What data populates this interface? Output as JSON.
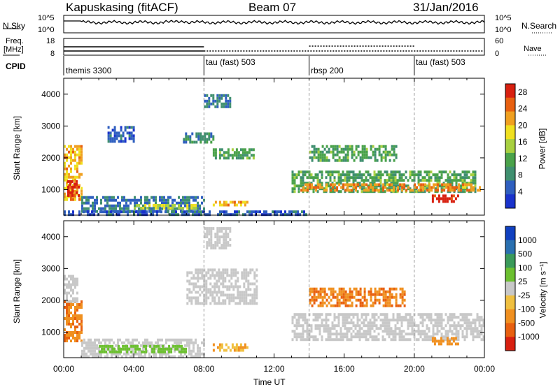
{
  "header": {
    "station": "Kapuskasing (fitACF)",
    "beam": "Beam 07",
    "date": "31/Jan/2016"
  },
  "noise_panel": {
    "left_label": "N.Sky",
    "right_label": "N.Search",
    "left_ticks": [
      "10^5",
      "10^0"
    ],
    "right_ticks": [
      "10^5",
      "10^0"
    ]
  },
  "freq_panel": {
    "left_label_1": "Freq.",
    "left_label_2": "[MHz]",
    "left_ticks": [
      "18",
      "8"
    ],
    "right_label": "Nave",
    "right_ticks": [
      "60",
      "0"
    ],
    "cpid_label": "CPID"
  },
  "cpid_segments": [
    {
      "label": "themis 3300",
      "start_hour": 0,
      "end_hour": 8
    },
    {
      "label": "tau (fast) 503",
      "start_hour": 8,
      "end_hour": 14
    },
    {
      "label": "rbsp 200",
      "start_hour": 14,
      "end_hour": 20
    },
    {
      "label": "tau (fast) 503",
      "start_hour": 20,
      "end_hour": 24
    }
  ],
  "colors": {
    "power_scale": [
      "#1a33cc",
      "#2f5fbf",
      "#3f8f6f",
      "#4aa24a",
      "#a8d040",
      "#f0e020",
      "#f0a020",
      "#e86010",
      "#d82010"
    ],
    "velocity_scale": [
      "#1040c0",
      "#2a70b0",
      "#3a9a5a",
      "#6cc030",
      "#c8c8c8",
      "#f0c040",
      "#f09020",
      "#e86010",
      "#d82010"
    ]
  },
  "chart_data": [
    {
      "type": "heatmap",
      "title": "",
      "ylabel": "Slant Range [km]",
      "xlabel": "",
      "ylim": [
        200,
        4500
      ],
      "xlim": [
        0,
        24
      ],
      "x_ticks": [],
      "y_ticks": [
        "1000",
        "2000",
        "3000",
        "4000"
      ],
      "colorbar_label": "Power [dB]",
      "colorbar_ticks": [
        "4",
        "8",
        "12",
        "16",
        "20",
        "24",
        "28"
      ],
      "colorbar_range": [
        0,
        30
      ],
      "regions": [
        {
          "t0": 0.0,
          "t1": 1.0,
          "r0": 700,
          "r1": 2400,
          "level": 20
        },
        {
          "t0": 0.2,
          "t1": 0.9,
          "r0": 800,
          "r1": 1300,
          "level": 28
        },
        {
          "t0": 1.0,
          "t1": 8.0,
          "r0": 300,
          "r1": 800,
          "level": 6
        },
        {
          "t0": 4.0,
          "t1": 7.5,
          "r0": 400,
          "r1": 550,
          "level": 16
        },
        {
          "t0": 2.5,
          "t1": 4.0,
          "r0": 2500,
          "r1": 3000,
          "level": 4
        },
        {
          "t0": 6.8,
          "t1": 8.5,
          "r0": 2500,
          "r1": 2800,
          "level": 8
        },
        {
          "t0": 8.5,
          "t1": 11.0,
          "r0": 2000,
          "r1": 2300,
          "level": 10
        },
        {
          "t0": 8.0,
          "t1": 9.5,
          "r0": 3600,
          "r1": 4000,
          "level": 6
        },
        {
          "t0": 8.5,
          "t1": 10.5,
          "r0": 500,
          "r1": 650,
          "level": 20
        },
        {
          "t0": 13.0,
          "t1": 23.5,
          "r0": 900,
          "r1": 1600,
          "level": 10
        },
        {
          "t0": 13.5,
          "t1": 23.8,
          "r0": 1000,
          "r1": 1200,
          "level": 22
        },
        {
          "t0": 14.0,
          "t1": 19.0,
          "r0": 1900,
          "r1": 2400,
          "level": 10
        },
        {
          "t0": 21.0,
          "t1": 22.5,
          "r0": 600,
          "r1": 850,
          "level": 28
        },
        {
          "t0": 0.0,
          "t1": 14.0,
          "r0": 200,
          "r1": 350,
          "level": 4
        }
      ]
    },
    {
      "type": "heatmap",
      "title": "",
      "ylabel": "Slant Range [km]",
      "xlabel": "Time UT",
      "ylim": [
        200,
        4500
      ],
      "xlim": [
        0,
        24
      ],
      "x_ticks": [
        "00:00",
        "04:00",
        "08:00",
        "12:00",
        "16:00",
        "20:00",
        "00:00"
      ],
      "y_ticks": [
        "1000",
        "2000",
        "3000",
        "4000"
      ],
      "colorbar_label": "Velocity [m s⁻¹]",
      "colorbar_ticks": [
        "1000",
        "500",
        "100",
        "25",
        "-25",
        "-100",
        "-500",
        "-1000"
      ],
      "regions": [
        {
          "t0": 0.0,
          "t1": 1.0,
          "r0": 700,
          "r1": 2000,
          "level": -500
        },
        {
          "t0": 0.0,
          "t1": 0.8,
          "r0": 2000,
          "r1": 2800,
          "level": 0
        },
        {
          "t0": 1.0,
          "t1": 8.0,
          "r0": 250,
          "r1": 800,
          "level": 0
        },
        {
          "t0": 2.0,
          "t1": 7.0,
          "r0": 350,
          "r1": 600,
          "level": 50
        },
        {
          "t0": 7.0,
          "t1": 11.0,
          "r0": 1900,
          "r1": 3000,
          "level": 0
        },
        {
          "t0": 8.0,
          "t1": 9.5,
          "r0": 3600,
          "r1": 4300,
          "level": 0
        },
        {
          "t0": 13.0,
          "t1": 24.0,
          "r0": 800,
          "r1": 1600,
          "level": 0
        },
        {
          "t0": 14.0,
          "t1": 19.5,
          "r0": 1800,
          "r1": 2400,
          "level": -500
        },
        {
          "t0": 21.0,
          "t1": 22.5,
          "r0": 600,
          "r1": 850,
          "level": -300
        },
        {
          "t0": 8.5,
          "t1": 10.5,
          "r0": 450,
          "r1": 650,
          "level": -100
        }
      ]
    }
  ]
}
